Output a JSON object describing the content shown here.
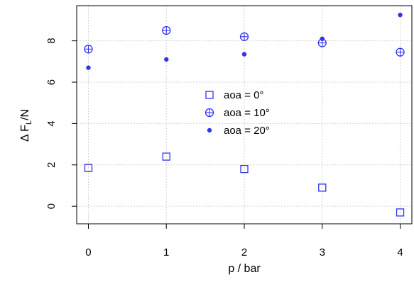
{
  "chart_data": {
    "type": "scatter",
    "xlabel": "p / bar",
    "ylabel": {
      "prefix": "Δ F",
      "sub": "L",
      "suffix": "/N"
    },
    "xlim": [
      -0.15,
      4.15
    ],
    "ylim": [
      -0.85,
      9.7
    ],
    "x_ticks": [
      0,
      1,
      2,
      3,
      4
    ],
    "x_tick_labels": [
      "0",
      "1",
      "2",
      "3",
      "4"
    ],
    "y_ticks": [
      0,
      2,
      4,
      6,
      8
    ],
    "y_tick_labels": [
      "0",
      "2",
      "4",
      "6",
      "8"
    ],
    "grid": true,
    "legend_position": "center",
    "marker_color": "#3333ee",
    "series": [
      {
        "name": "aoa = 0°",
        "marker": "open-square",
        "x": [
          0,
          1,
          2,
          3,
          4
        ],
        "y": [
          1.85,
          2.4,
          1.8,
          0.9,
          -0.3
        ]
      },
      {
        "name": "aoa = 10°",
        "marker": "circle-plus",
        "x": [
          0,
          1,
          2,
          3,
          4
        ],
        "y": [
          7.6,
          8.5,
          8.2,
          7.9,
          7.45
        ]
      },
      {
        "name": "aoa = 20°",
        "marker": "filled-dot",
        "x": [
          0,
          1,
          2,
          3,
          4
        ],
        "y": [
          6.7,
          7.1,
          7.35,
          8.1,
          9.25
        ]
      }
    ]
  }
}
